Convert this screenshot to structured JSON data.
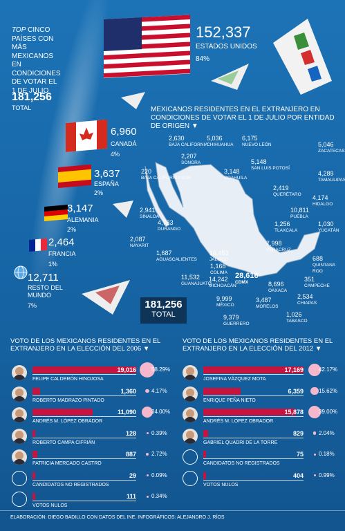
{
  "intro": {
    "top": "TOP",
    "text": "CINCO PAÍSES CON MÁS MEXICANOS EN CONDICIONES DE VOTAR EL 1 DE JULIO",
    "total_value": "181,256",
    "total_label": "TOTAL"
  },
  "countries": [
    {
      "value": "152,337",
      "name": "ESTADOS UNIDOS",
      "pct": "84%"
    },
    {
      "value": "6,960",
      "name": "CANADÁ",
      "pct": "4%"
    },
    {
      "value": "3,637",
      "name": "ESPAÑA",
      "pct": "2%"
    },
    {
      "value": "3,147",
      "name": "ALEMANIA",
      "pct": "2%"
    },
    {
      "value": "2,464",
      "name": "FRANCIA",
      "pct": "1%"
    },
    {
      "value": "12,711",
      "name": "RESTO DEL MUNDO",
      "pct": "7%"
    }
  ],
  "map": {
    "title": "MEXICANOS RESIDENTES EN EL EXTRANJERO EN CONDICIONES DE VOTAR EL 1 DE JULIO POR ENTIDAD DE ORIGEN ▼",
    "total_value": "181,256",
    "total_label": "TOTAL",
    "states": [
      {
        "n": "2,630",
        "s": "BAJA CALIFORNIA"
      },
      {
        "n": "5,036",
        "s": "CHIHUAHUA"
      },
      {
        "n": "6,175",
        "s": "NUEVO LEÓN"
      },
      {
        "n": "5,046",
        "s": "ZACATECAS"
      },
      {
        "n": "2,207",
        "s": "SONORA"
      },
      {
        "n": "5,148",
        "s": "SAN LUIS POTOSÍ"
      },
      {
        "n": "220",
        "s": "BAJA CALIFORNIA SUR"
      },
      {
        "n": "3,148",
        "s": "COAHUILA"
      },
      {
        "n": "4,289",
        "s": "TAMAULIPAS"
      },
      {
        "n": "2,419",
        "s": "QUERÉTARO"
      },
      {
        "n": "4,174",
        "s": "HIDALGO"
      },
      {
        "n": "2,941",
        "s": "SINALOA"
      },
      {
        "n": "10,811",
        "s": "PUEBLA"
      },
      {
        "n": "4,783",
        "s": "DURANGO"
      },
      {
        "n": "1,256",
        "s": "TLAXCALA"
      },
      {
        "n": "1,030",
        "s": "YUCATÁN"
      },
      {
        "n": "2,087",
        "s": "NAYARIT"
      },
      {
        "n": "7,998",
        "s": "VERACRUZ"
      },
      {
        "n": "1,687",
        "s": "AGUASCALIENTES"
      },
      {
        "n": "16,453",
        "s": "JALISCO"
      },
      {
        "n": "688",
        "s": "QUINTANA ROO"
      },
      {
        "n": "1,168",
        "s": "COLIMA"
      },
      {
        "n": "11,532",
        "s": "GUANAJUATO"
      },
      {
        "n": "14,242",
        "s": "MICHOACÁN"
      },
      {
        "n": "28,616",
        "s": "CDMX"
      },
      {
        "n": "8,696",
        "s": "OAXACA"
      },
      {
        "n": "351",
        "s": "CAMPECHE"
      },
      {
        "n": "9,999",
        "s": "MÉXICO"
      },
      {
        "n": "3,487",
        "s": "MORELOS"
      },
      {
        "n": "2,534",
        "s": "CHIAPAS"
      },
      {
        "n": "9,379",
        "s": "GUERRERO"
      },
      {
        "n": "1,026",
        "s": "TABASCO"
      }
    ]
  },
  "vote2006": {
    "title": "VOTO DE LOS MEXICANOS RESIDENTES EN EL EXTRANJERO EN LA ELECCIÓN DEL 2006 ▼",
    "rows": [
      {
        "name": "FELIPE CALDERÓN HINOJOSA",
        "value": "19,016",
        "pct": "58.29%",
        "v": 19016
      },
      {
        "name": "ROBERTO MADRAZO PINTADO",
        "value": "1,360",
        "pct": "4.17%",
        "v": 1360
      },
      {
        "name": "ANDRÉS M. LÓPEZ OBRADOR",
        "value": "11,090",
        "pct": "34.00%",
        "v": 11090
      },
      {
        "name": "ROBERTO CAMPA CIFRIÁN",
        "value": "128",
        "pct": "0.39%",
        "v": 128
      },
      {
        "name": "PATRICIA MERCADO CASTRO",
        "value": "887",
        "pct": "2.72%",
        "v": 887
      },
      {
        "name": "CANDIDATOS NO REGISTRADOS",
        "value": "29",
        "pct": "0.09%",
        "v": 29
      },
      {
        "name": "VOTOS NULOS",
        "value": "111",
        "pct": "0.34%",
        "v": 111
      }
    ]
  },
  "vote2012": {
    "title": "VOTO DE LOS MEXICANOS RESIDENTES EN EL EXTRANJERO EN LA ELECCIÓN DEL 2012 ▼",
    "rows": [
      {
        "name": "JOSEFINA VÁZQUEZ MOTA",
        "value": "17,169",
        "pct": "42.17%",
        "v": 17169
      },
      {
        "name": "ENRIQUE PEÑA NIETO",
        "value": "6,359",
        "pct": "15.62%",
        "v": 6359
      },
      {
        "name": "ANDRÉS M. LÓPEZ OBRADOR",
        "value": "15,878",
        "pct": "39.00%",
        "v": 15878
      },
      {
        "name": "GABRIEL QUADRI DE LA TORRE",
        "value": "829",
        "pct": "2.04%",
        "v": 829
      },
      {
        "name": "CANDIDATOS NO REGISTRADOS",
        "value": "75",
        "pct": "0.18%",
        "v": 75
      },
      {
        "name": "VOTOS NULOS",
        "value": "404",
        "pct": "0.99%",
        "v": 404
      }
    ]
  },
  "footer": "ELABORACIÓN: DIEGO BADILLO CON DATOS DEL INE. INFOGRÁFICOS: ALEJANDRO J. RÍOS"
}
